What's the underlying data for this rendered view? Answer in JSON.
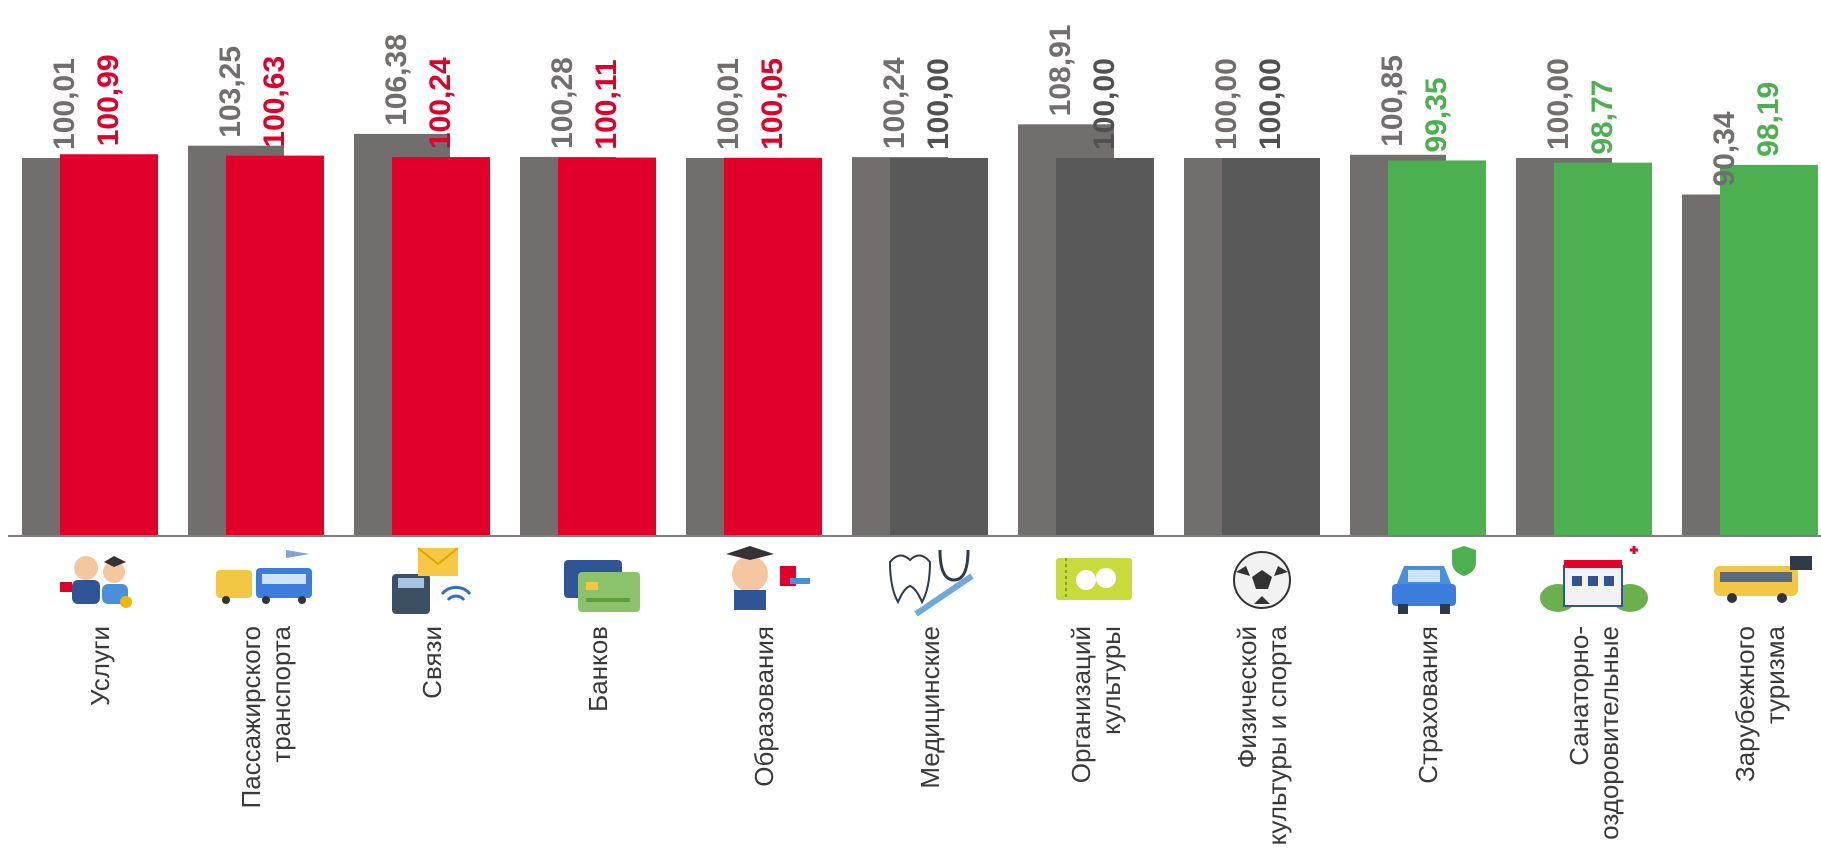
{
  "chart_data": {
    "type": "bar",
    "categories": [
      "Услуги",
      "Пассажирского транспорта",
      "Связи",
      "Банков",
      "Образования",
      "Медицинские",
      "Организаций культуры",
      "Физической культуры и спорта",
      "Страхования",
      "Санаторно-оздоровительные",
      "Зарубежного туризма"
    ],
    "category_lines": [
      [
        "Услуги"
      ],
      [
        "Пассажирского",
        "транспорта"
      ],
      [
        "Связи"
      ],
      [
        "Банков"
      ],
      [
        "Образования"
      ],
      [
        "Медицинские"
      ],
      [
        "Организаций",
        "культуры"
      ],
      [
        "Физической",
        "культуры и спорта"
      ],
      [
        "Страхования"
      ],
      [
        "Санаторно-",
        "оздоровительные"
      ],
      [
        "Зарубежного",
        "туризма"
      ]
    ],
    "series": [
      {
        "values": [
          100.01,
          103.25,
          106.38,
          100.28,
          100.01,
          100.24,
          108.91,
          100.0,
          100.85,
          100.0,
          90.34
        ],
        "labels": [
          "100,01",
          "103,25",
          "106,38",
          "100,28",
          "100,01",
          "100,24",
          "108,91",
          "100,00",
          "100,85",
          "100,00",
          "90,34"
        ],
        "color": "#736e6e"
      },
      {
        "values": [
          100.99,
          100.63,
          100.24,
          100.11,
          100.05,
          100.0,
          100.0,
          100.0,
          99.35,
          98.77,
          98.19
        ],
        "labels": [
          "100,99",
          "100,63",
          "100,24",
          "100,11",
          "100,05",
          "100,00",
          "100,00",
          "100,00",
          "99,35",
          "98,77",
          "98,19"
        ],
        "colors": [
          "#e0002a",
          "#e0002a",
          "#e0002a",
          "#e0002a",
          "#e0002a",
          "#595959",
          "#595959",
          "#595959",
          "#4caf50",
          "#4caf50",
          "#4caf50"
        ]
      }
    ],
    "ylim": [
      0,
      113
    ],
    "grid": false,
    "legend": "none"
  },
  "icons": [
    "services-people-icon",
    "bus-taxi-train-plane-icon",
    "telephone-mail-wifi-icon",
    "bank-cards-icon",
    "graduate-diploma-icon",
    "tooth-stethoscope-syringe-icon",
    "theater-tickets-icon",
    "soccer-ball-icon",
    "car-shield-icon",
    "sanatorium-building-icon",
    "tour-bus-icon"
  ],
  "colors": {
    "gray_bar": "#736e6e",
    "dark_bar": "#595959",
    "red": "#e0002a",
    "green": "#4caf50",
    "axis": "#7f7f7f"
  }
}
